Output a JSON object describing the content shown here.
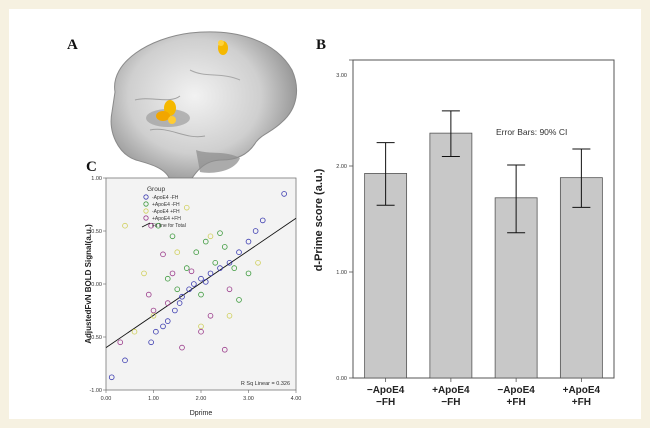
{
  "figure": {
    "panel_labels": {
      "a": "A",
      "b": "B",
      "c": "C"
    }
  },
  "brain_panel": {
    "description_icon": "brain-sagittal-icon",
    "activation_color": "#f5b800"
  },
  "chart_data": [
    {
      "id": "scatter",
      "type": "scatter",
      "title": "",
      "xlabel": "Dprime",
      "ylabel": "AdjustedFvN BOLD Signal(a.u.)",
      "xlim": [
        0.0,
        4.0
      ],
      "ylim": [
        -1.0,
        1.0
      ],
      "xticks": [
        "0.00",
        "1.00",
        "2.00",
        "3.00",
        "4.00"
      ],
      "yticks": [
        "-1.00",
        "-0.50",
        "0.00",
        "0.50",
        "1.00"
      ],
      "legend": {
        "title": "Group",
        "placement": "top-left",
        "entries": [
          "-ApoE4 -FH",
          "+ApoE4 -FH",
          "-ApoE4 +FH",
          "+ApoE4 +FH",
          "Fit line for Total"
        ]
      },
      "annotation": "R Sq Linear = 0.326",
      "fit_line": {
        "x": [
          0.0,
          4.0
        ],
        "y": [
          -0.6,
          0.62
        ]
      },
      "series": [
        {
          "name": "-ApoE4 -FH",
          "color": "#3b3bb0",
          "points": [
            [
              0.12,
              -0.88
            ],
            [
              0.4,
              -0.72
            ],
            [
              0.95,
              -0.55
            ],
            [
              1.05,
              -0.45
            ],
            [
              1.3,
              -0.35
            ],
            [
              1.45,
              -0.25
            ],
            [
              1.6,
              -0.12
            ],
            [
              1.75,
              -0.05
            ],
            [
              1.85,
              0.0
            ],
            [
              2.0,
              0.05
            ],
            [
              2.2,
              0.1
            ],
            [
              2.4,
              0.15
            ],
            [
              2.6,
              0.2
            ],
            [
              2.8,
              0.3
            ],
            [
              3.0,
              0.4
            ],
            [
              3.15,
              0.5
            ],
            [
              3.3,
              0.6
            ],
            [
              3.75,
              0.85
            ],
            [
              1.2,
              -0.4
            ],
            [
              2.1,
              0.02
            ],
            [
              1.55,
              -0.18
            ]
          ]
        },
        {
          "name": "+ApoE4 -FH",
          "color": "#3d9a3d",
          "points": [
            [
              1.1,
              0.55
            ],
            [
              1.4,
              0.45
            ],
            [
              1.7,
              0.15
            ],
            [
              1.9,
              0.3
            ],
            [
              2.1,
              0.4
            ],
            [
              2.3,
              0.2
            ],
            [
              2.5,
              0.35
            ],
            [
              2.7,
              0.15
            ],
            [
              1.5,
              -0.05
            ],
            [
              2.0,
              -0.1
            ],
            [
              2.8,
              -0.15
            ],
            [
              3.0,
              0.1
            ],
            [
              1.3,
              0.05
            ],
            [
              2.4,
              0.48
            ]
          ]
        },
        {
          "name": "-ApoE4 +FH",
          "color": "#cfcf5a",
          "points": [
            [
              1.7,
              0.72
            ],
            [
              0.4,
              0.55
            ],
            [
              1.0,
              -0.3
            ],
            [
              2.6,
              -0.3
            ],
            [
              2.2,
              0.45
            ],
            [
              0.6,
              -0.45
            ],
            [
              1.5,
              0.3
            ],
            [
              3.2,
              0.2
            ],
            [
              2.0,
              -0.4
            ],
            [
              0.8,
              0.1
            ]
          ]
        },
        {
          "name": "+ApoE4 +FH",
          "color": "#9a3a8a",
          "points": [
            [
              0.3,
              -0.55
            ],
            [
              0.95,
              0.55
            ],
            [
              1.2,
              0.28
            ],
            [
              1.3,
              -0.18
            ],
            [
              1.4,
              0.1
            ],
            [
              2.0,
              -0.45
            ],
            [
              2.2,
              -0.3
            ],
            [
              2.5,
              -0.62
            ],
            [
              1.0,
              -0.25
            ],
            [
              1.8,
              0.12
            ],
            [
              2.6,
              -0.05
            ],
            [
              1.6,
              -0.6
            ],
            [
              0.9,
              -0.1
            ]
          ]
        }
      ]
    },
    {
      "id": "bars",
      "type": "bar",
      "title": "",
      "ylabel": "d-Prime score (a.u.)",
      "ylim": [
        0.0,
        3.0
      ],
      "yticks": [
        "0.00",
        "1.00",
        "2.00",
        "3.00"
      ],
      "annotation": "Error Bars: 90% CI",
      "categories": [
        "−ApoE4\n−FH",
        "+ApoE4\n−FH",
        "−ApoE4\n+FH",
        "+ApoE4\n+FH"
      ],
      "values": [
        1.93,
        2.31,
        1.7,
        1.89
      ],
      "ci_low": [
        1.63,
        2.09,
        1.37,
        1.61
      ],
      "ci_high": [
        2.22,
        2.52,
        2.01,
        2.16
      ],
      "bar_color": "#c8c8c8"
    }
  ]
}
